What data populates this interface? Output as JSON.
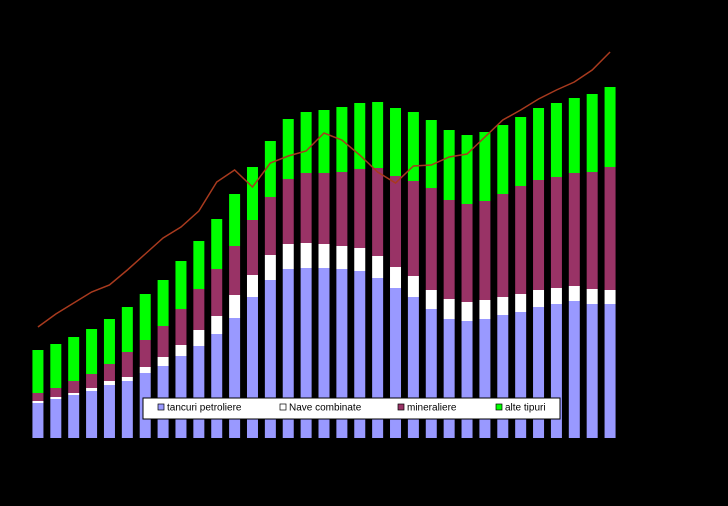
{
  "chart_data": {
    "type": "bar",
    "stacked": true,
    "categories": [
      null,
      null,
      null,
      null,
      null,
      null,
      null,
      null,
      null,
      null,
      null,
      null,
      null,
      null,
      null,
      null,
      null,
      null,
      null,
      null,
      null,
      null,
      null,
      null,
      null,
      null,
      null,
      null,
      null,
      null,
      null,
      null,
      null
    ],
    "series": [
      {
        "name": "tancuri petroliere",
        "color": "#9999ff",
        "values": [
          35,
          39,
          43,
          47,
          53,
          57,
          65,
          72,
          82,
          92,
          104,
          120,
          141,
          158,
          169,
          170,
          170,
          169,
          167,
          160,
          150,
          141,
          129,
          119,
          117,
          119,
          123,
          126,
          131,
          134,
          137,
          134,
          134
        ]
      },
      {
        "name": "Nave combinate",
        "color": "#ffffff",
        "values": [
          2,
          2,
          2,
          3,
          4,
          4,
          6,
          9,
          11,
          16,
          18,
          23,
          22,
          25,
          25,
          25,
          24,
          23,
          23,
          22,
          21,
          21,
          19,
          20,
          19,
          19,
          18,
          18,
          17,
          16,
          15,
          15,
          14
        ]
      },
      {
        "name": "mineraliere",
        "color": "#993366",
        "values": [
          8,
          9,
          12,
          14,
          17,
          25,
          27,
          31,
          36,
          41,
          47,
          49,
          55,
          58,
          65,
          70,
          71,
          74,
          79,
          88,
          91,
          95,
          102,
          99,
          98,
          99,
          103,
          108,
          110,
          111,
          113,
          117,
          123
        ]
      },
      {
        "name": "alte tipuri",
        "color": "#00ff00",
        "values": [
          43,
          44,
          44,
          45,
          45,
          45,
          46,
          46,
          48,
          48,
          50,
          52,
          53,
          56,
          60,
          61,
          63,
          65,
          66,
          66,
          68,
          69,
          68,
          70,
          69,
          69,
          69,
          69,
          72,
          74,
          75,
          78,
          80
        ]
      }
    ],
    "line": {
      "type": "line",
      "color": "#a83a1e",
      "values": [
        111,
        124,
        135,
        146,
        153,
        168,
        184,
        200,
        211,
        227,
        256,
        268,
        251,
        275,
        282,
        287,
        305,
        298,
        283,
        266,
        255,
        272,
        273,
        281,
        284,
        301,
        318,
        328,
        339,
        348,
        356,
        368,
        386
      ]
    },
    "ylim": [
      0,
      400
    ]
  }
}
